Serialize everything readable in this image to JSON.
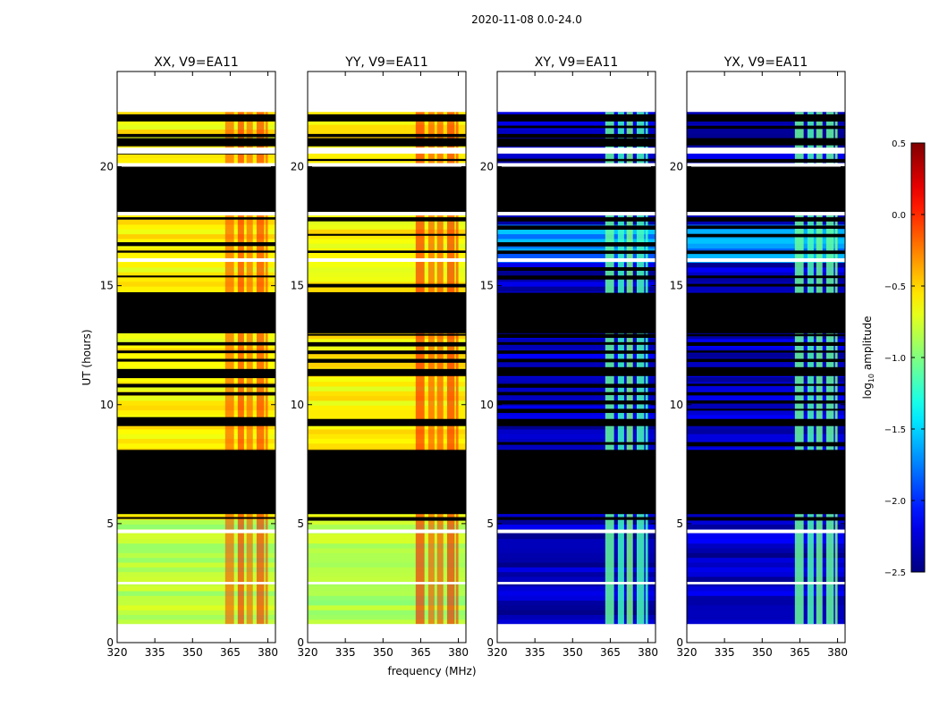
{
  "figure": {
    "suptitle": "2020-11-08 0.0-24.0",
    "xlabel": "frequency (MHz)",
    "ylabel": "UT (hours)",
    "colorbar_label_prefix": "log",
    "colorbar_label_sub": "10",
    "colorbar_label_suffix": " amplitude"
  },
  "chart_data": {
    "type": "heatmap",
    "colormap": "jet",
    "xlim": [
      320,
      383
    ],
    "ylim": [
      0,
      24
    ],
    "x_ticks": [
      320,
      335,
      350,
      365,
      380
    ],
    "y_ticks": [
      0,
      5,
      10,
      15,
      20
    ],
    "colorbar": {
      "range": [
        -2.5,
        0.5
      ],
      "ticks": [
        "0.5",
        "0.0",
        "−0.5",
        "−1.0",
        "−1.5",
        "−2.0",
        "−2.5"
      ],
      "tick_values": [
        0.5,
        0.0,
        -0.5,
        -1.0,
        -1.5,
        -2.0,
        -2.5
      ]
    },
    "panels": [
      {
        "title": "XX, V9=EA11",
        "kind": "parallel"
      },
      {
        "title": "YY, V9=EA11",
        "kind": "parallel"
      },
      {
        "title": "XY, V9=EA11",
        "kind": "cross"
      },
      {
        "title": "YX, V9=EA11",
        "kind": "cross"
      }
    ],
    "flagged_gaps_hours": [
      [
        0.68,
        0.78
      ],
      [
        2.45,
        2.55
      ],
      [
        4.6,
        4.75
      ],
      [
        16.0,
        16.15
      ],
      [
        17.95,
        18.1
      ],
      [
        20.0,
        20.15
      ],
      [
        20.55,
        20.8
      ],
      [
        22.3,
        24.0
      ]
    ],
    "flagged_blocks_hours": [
      [
        5.4,
        8.1
      ],
      [
        13.0,
        14.7
      ],
      [
        18.1,
        20.0
      ],
      [
        9.1,
        9.4
      ],
      [
        11.2,
        11.5
      ],
      [
        6.9,
        7.1
      ],
      [
        21.0,
        21.2
      ],
      [
        21.9,
        22.2
      ]
    ],
    "rfi_channels_mhz": [
      [
        363,
        366.5
      ],
      [
        368,
        370.5
      ],
      [
        371.5,
        374
      ],
      [
        375.5,
        378.5
      ],
      [
        379,
        380
      ]
    ],
    "log10_amplitude_levels": {
      "parallel_base": -0.6,
      "parallel_low_band": -0.85,
      "parallel_rfi": 0.0,
      "cross_base": -2.3,
      "cross_rfi": -1.1
    }
  }
}
